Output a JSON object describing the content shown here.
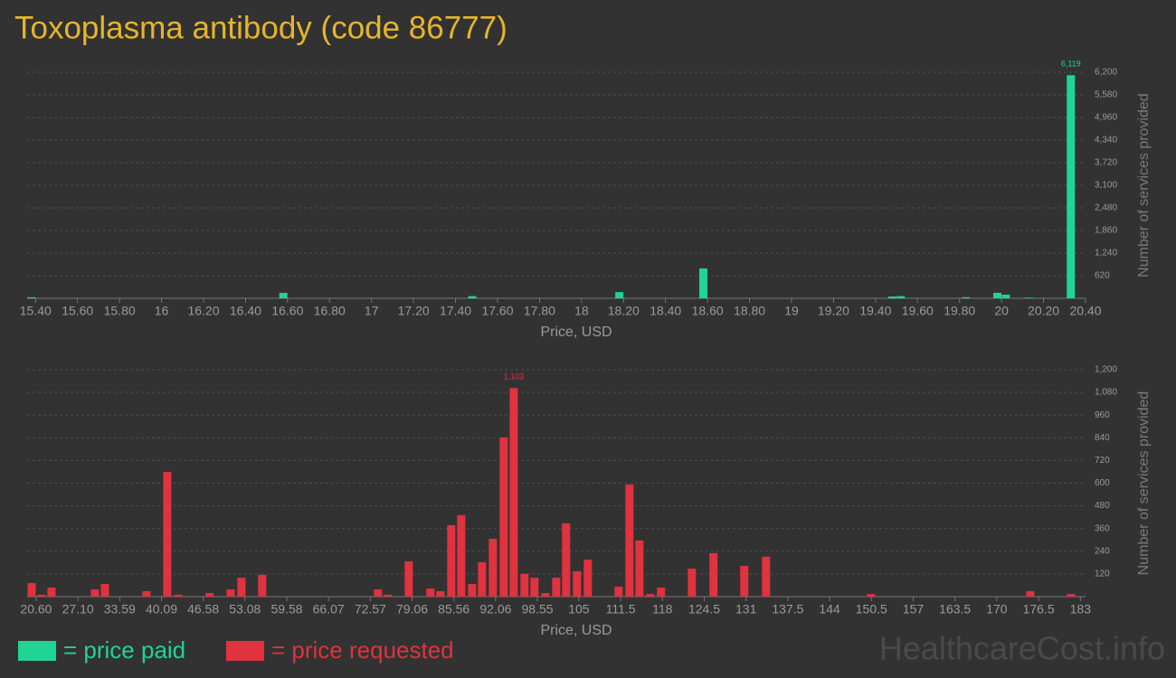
{
  "title": "Toxoplasma antibody (code 86777)",
  "watermark": "HealthcareCost.info",
  "chart_data": [
    {
      "type": "bar",
      "xlabel": "Price, USD",
      "ylabel": "Number of services provided",
      "grid": true,
      "xlim": [
        15.36,
        20.4
      ],
      "ylim": [
        0,
        6200
      ],
      "xticks": [
        {
          "value": 15.4,
          "label": "15.40"
        },
        {
          "value": 15.6,
          "label": "15.60"
        },
        {
          "value": 15.8,
          "label": "15.80"
        },
        16,
        {
          "value": 16.2,
          "label": "16.20"
        },
        {
          "value": 16.4,
          "label": "16.40"
        },
        {
          "value": 16.6,
          "label": "16.60"
        },
        {
          "value": 16.8,
          "label": "16.80"
        },
        17,
        {
          "value": 17.2,
          "label": "17.20"
        },
        {
          "value": 17.4,
          "label": "17.40"
        },
        {
          "value": 17.6,
          "label": "17.60"
        },
        {
          "value": 17.8,
          "label": "17.80"
        },
        18,
        {
          "value": 18.2,
          "label": "18.20"
        },
        {
          "value": 18.4,
          "label": "18.40"
        },
        {
          "value": 18.6,
          "label": "18.60"
        },
        {
          "value": 18.8,
          "label": "18.80"
        },
        19,
        {
          "value": 19.2,
          "label": "19.20"
        },
        {
          "value": 19.4,
          "label": "19.40"
        },
        {
          "value": 19.6,
          "label": "19.60"
        },
        {
          "value": 19.8,
          "label": "19.80"
        },
        20,
        {
          "value": 20.2,
          "label": "20.20"
        },
        {
          "value": 20.4,
          "label": "20.40"
        }
      ],
      "yticks": [
        620,
        {
          "value": 1240,
          "label": "1,240"
        },
        {
          "value": 1860,
          "label": "1,860"
        },
        {
          "value": 2480,
          "label": "2,480"
        },
        {
          "value": 3100,
          "label": "3,100"
        },
        {
          "value": 3720,
          "label": "3,720"
        },
        {
          "value": 4340,
          "label": "4,340"
        },
        {
          "value": 4960,
          "label": "4,960"
        },
        {
          "value": 5580,
          "label": "5,580"
        },
        {
          "value": 6200,
          "label": "6,200"
        }
      ],
      "x": [
        15.38,
        16.58,
        17.48,
        18.18,
        18.58,
        19.48,
        19.52,
        19.83,
        19.98,
        20.02,
        20.13,
        20.33
      ],
      "series": [
        {
          "name": "= price paid",
          "color": "#20d495",
          "values": [
            30,
            150,
            60,
            170,
            820,
            50,
            60,
            30,
            150,
            100,
            20,
            6119
          ],
          "value_labels": [
            null,
            null,
            null,
            null,
            null,
            null,
            null,
            null,
            null,
            null,
            null,
            "6,119"
          ]
        }
      ]
    },
    {
      "type": "bar",
      "xlabel": "Price, USD",
      "ylabel": "Number of services provided",
      "grid": true,
      "xlim": [
        19.2,
        183.8
      ],
      "ylim": [
        0,
        1200
      ],
      "xticks": [
        {
          "value": 20.6,
          "label": "20.60"
        },
        {
          "value": 27.1,
          "label": "27.10"
        },
        33.59,
        40.09,
        46.58,
        53.08,
        59.58,
        66.07,
        72.57,
        79.06,
        85.56,
        92.06,
        98.55,
        105,
        111.5,
        118,
        124.5,
        131,
        137.5,
        144,
        150.5,
        157,
        163.5,
        170,
        176.5,
        183
      ],
      "yticks": [
        120,
        240,
        360,
        480,
        600,
        720,
        840,
        960,
        {
          "value": 1080,
          "label": "1,080"
        },
        {
          "value": 1200,
          "label": "1,200"
        }
      ],
      "x": [
        19.9,
        21.44,
        22.99,
        29.74,
        31.29,
        37.76,
        40.99,
        42.68,
        47.6,
        50.84,
        52.53,
        55.76,
        73.76,
        75.31,
        78.55,
        81.92,
        83.47,
        85.16,
        86.71,
        88.4,
        89.94,
        91.63,
        93.32,
        94.87,
        96.55,
        98.1,
        99.79,
        101.48,
        103.02,
        104.71,
        106.4,
        111.18,
        112.87,
        114.42,
        116.1,
        117.79,
        122.57,
        125.94,
        130.73,
        134.11,
        150.42,
        175.19,
        181.56
      ],
      "series": [
        {
          "name": "= price requested",
          "color": "#e0323f",
          "values": [
            72,
            10,
            48,
            38,
            67,
            29,
            660,
            10,
            19,
            38,
            100,
            115,
            38,
            10,
            187,
            43,
            29,
            378,
            431,
            67,
            182,
            306,
            842,
            1103,
            120,
            100,
            19,
            100,
            388,
            134,
            196,
            53,
            593,
            297,
            14,
            48,
            148,
            230,
            163,
            211,
            14,
            29,
            14
          ],
          "value_labels": [
            null,
            null,
            null,
            null,
            null,
            null,
            null,
            null,
            null,
            null,
            null,
            null,
            null,
            null,
            null,
            null,
            null,
            null,
            null,
            null,
            null,
            null,
            null,
            "1,103",
            null,
            null,
            null,
            null,
            null,
            null,
            null,
            null,
            null,
            null,
            null,
            null,
            null,
            null,
            null,
            null,
            null,
            null,
            null
          ]
        }
      ]
    }
  ]
}
